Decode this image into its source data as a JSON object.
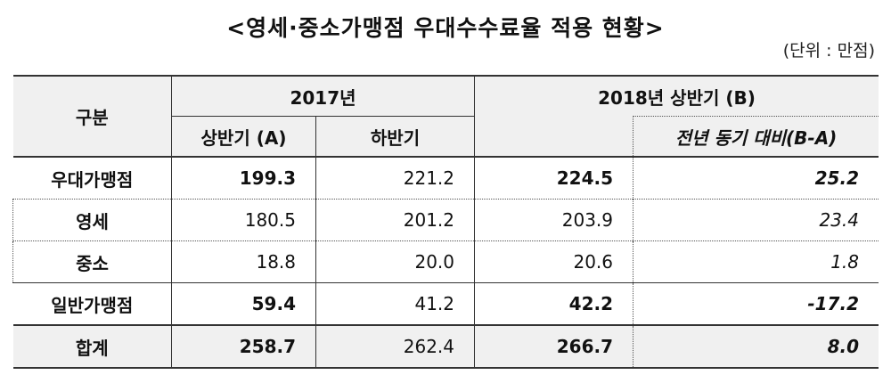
{
  "title": "<영세·중소가맹점 우대수수료율 적용 현황>",
  "unit": "(단위 : 만점)",
  "header": {
    "category": "구분",
    "year2017": "2017년",
    "h1_2017": "상반기 (A)",
    "h2_2017": "하반기",
    "h1_2018": "2018년 상반기 (B)",
    "yoy": "전년 동기 대비(B-A)"
  },
  "rows": [
    {
      "label": "우대가맹점",
      "a": "199.3",
      "h2": "221.2",
      "b": "224.5",
      "diff": "25.2"
    },
    {
      "label": "영세",
      "a": "180.5",
      "h2": "201.2",
      "b": "203.9",
      "diff": "23.4"
    },
    {
      "label": "중소",
      "a": "18.8",
      "h2": "20.0",
      "b": "20.6",
      "diff": "1.8"
    },
    {
      "label": "일반가맹점",
      "a": "59.4",
      "h2": "41.2",
      "b": "42.2",
      "diff": "-17.2"
    },
    {
      "label": "합계",
      "a": "258.7",
      "h2": "262.4",
      "b": "266.7",
      "diff": "8.0"
    }
  ]
}
